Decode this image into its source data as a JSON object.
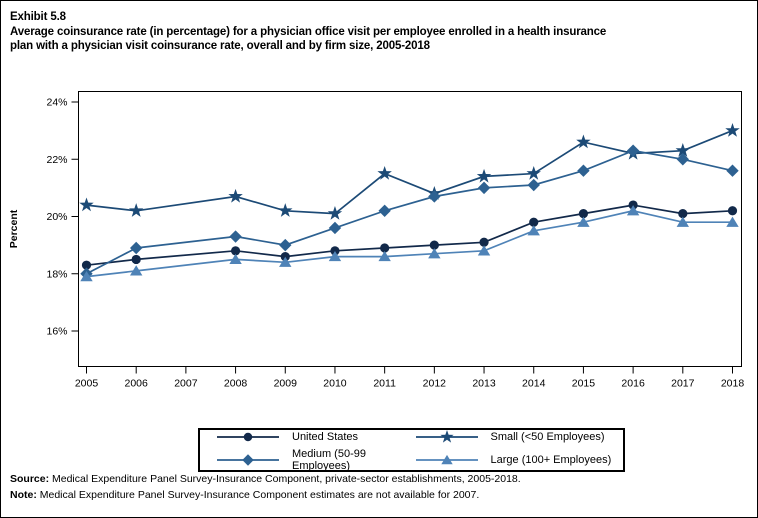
{
  "header": {
    "exhibit": "Exhibit 5.8",
    "title_lines": [
      "Average coinsurance rate (in percentage) for a physician office visit per employee enrolled in a health insurance",
      "plan with a physician visit coinsurance rate, overall and by firm size, 2005-2018"
    ]
  },
  "chart_data": {
    "type": "line",
    "title": "Average coinsurance rate (in percentage) for a physician office visit per employee enrolled in a health insurance plan with a physician visit coinsurance rate, overall and by firm size, 2005-2018",
    "xlabel": "",
    "ylabel": "Percent",
    "x_axis": {
      "ticks": [
        2005,
        2006,
        2007,
        2008,
        2009,
        2010,
        2011,
        2012,
        2013,
        2014,
        2015,
        2016,
        2017,
        2018
      ]
    },
    "y_axis": {
      "ticks": [
        16,
        18,
        20,
        22,
        24
      ],
      "tick_suffix": "%",
      "ylim": [
        14.8,
        24.4
      ]
    },
    "grid": "off",
    "legend_position": "bottom",
    "missing_years": [
      2007
    ],
    "x": [
      2005,
      2006,
      2008,
      2009,
      2010,
      2011,
      2012,
      2013,
      2014,
      2015,
      2016,
      2017,
      2018
    ],
    "series": [
      {
        "name": "United States",
        "marker": "circle",
        "color": "#12294a",
        "values": [
          18.3,
          18.5,
          18.8,
          18.6,
          18.8,
          18.9,
          19.0,
          19.1,
          19.8,
          20.1,
          20.4,
          20.1,
          20.2
        ]
      },
      {
        "name": "Small (<50 Employees)",
        "marker": "star",
        "color": "#1c4a76",
        "values": [
          20.4,
          20.2,
          20.7,
          20.2,
          20.1,
          21.5,
          20.8,
          21.4,
          21.5,
          22.6,
          22.2,
          22.3,
          23.0
        ]
      },
      {
        "name": "Medium (50-99 Employees)",
        "marker": "diamond",
        "color": "#2d6191",
        "values": [
          18.0,
          18.9,
          19.3,
          19.0,
          19.6,
          20.2,
          20.7,
          21.0,
          21.1,
          21.6,
          22.3,
          22.0,
          21.6
        ]
      },
      {
        "name": "Large (100+ Employees)",
        "marker": "triangle",
        "color": "#4f83b7",
        "values": [
          17.9,
          18.1,
          18.5,
          18.4,
          18.6,
          18.6,
          18.7,
          18.8,
          19.5,
          19.8,
          20.2,
          19.8,
          19.8
        ]
      }
    ]
  },
  "legend": {
    "items": [
      {
        "label": "United States",
        "series": 0
      },
      {
        "label": "Small (<50 Employees)",
        "series": 1
      },
      {
        "label": "Medium (50-99 Employees)",
        "series": 2
      },
      {
        "label": "Large (100+ Employees)",
        "series": 3
      }
    ]
  },
  "footer": {
    "source_label": "Source:",
    "source_text": " Medical Expenditure Panel Survey-Insurance Component, private-sector establishments, 2005-2018.",
    "note_label": "Note:",
    "note_text": " Medical Expenditure Panel Survey-Insurance Component estimates are not available for 2007."
  }
}
